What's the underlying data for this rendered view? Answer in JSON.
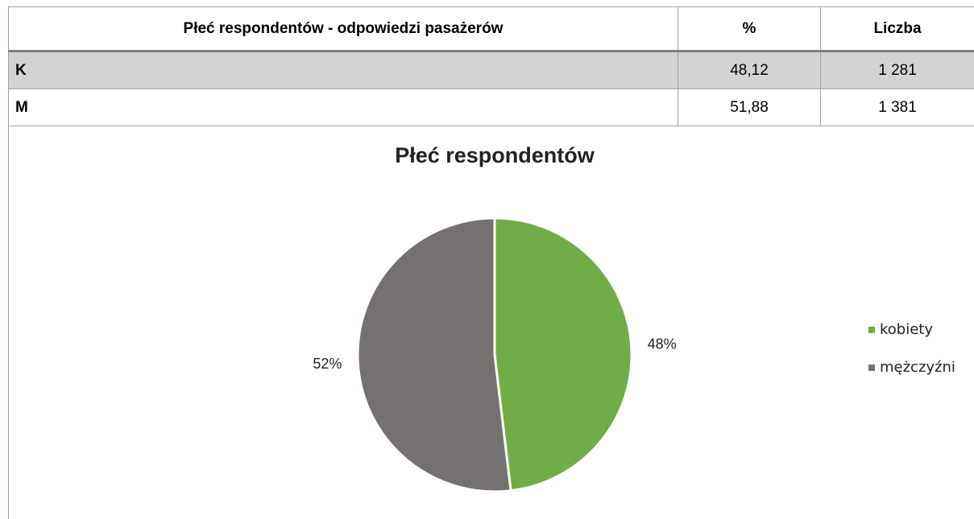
{
  "table": {
    "header": [
      "Płeć respondentów  - odpowiedzi pasażerów",
      "%",
      "Liczba"
    ],
    "rows": [
      [
        "K",
        "48,12",
        "1 281"
      ],
      [
        "M",
        "51,88",
        "1 381"
      ]
    ]
  },
  "chart_data": {
    "type": "pie",
    "title": "Płeć respondentów",
    "categories": [
      "kobiety",
      "mężczyźni"
    ],
    "values": [
      48.12,
      51.88
    ],
    "value_labels": [
      "48%",
      "52%"
    ],
    "colors": [
      "#70ad47",
      "#767171"
    ],
    "legend": "right"
  }
}
